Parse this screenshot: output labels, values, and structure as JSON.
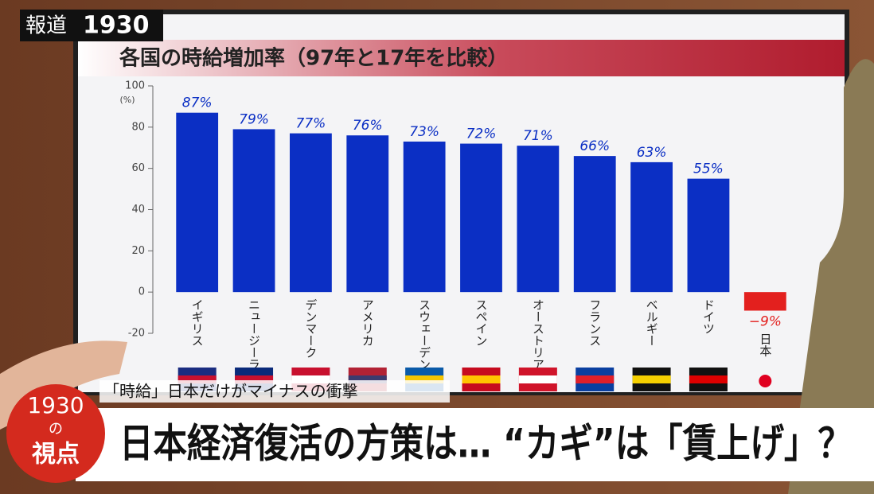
{
  "chart_data": {
    "type": "bar",
    "title": "各国の時給増加率（97年と17年を比較）",
    "y_unit_label": "(%)",
    "categories": [
      "イギリス",
      "ニュージーランド",
      "デンマーク",
      "アメリカ",
      "スウェーデン",
      "スペイン",
      "オーストリア",
      "フランス",
      "ベルギー",
      "ドイツ",
      "日本"
    ],
    "values": [
      87,
      79,
      77,
      76,
      73,
      72,
      71,
      66,
      63,
      55,
      -9
    ],
    "value_labels": [
      "87%",
      "79%",
      "77%",
      "76%",
      "73%",
      "72%",
      "71%",
      "66%",
      "63%",
      "55%",
      "−9%"
    ],
    "colors": [
      "#0b2fc4",
      "#0b2fc4",
      "#0b2fc4",
      "#0b2fc4",
      "#0b2fc4",
      "#0b2fc4",
      "#0b2fc4",
      "#0b2fc4",
      "#0b2fc4",
      "#0b2fc4",
      "#e3201e"
    ],
    "ylim": [
      -20,
      100
    ],
    "yticks": [
      -20,
      0,
      20,
      40,
      60,
      80,
      100
    ]
  },
  "logo": {
    "name": "報道",
    "time": "1930"
  },
  "caption": "「時給」日本だけがマイナスの衝撃",
  "badge": {
    "time": "1930",
    "particle": "の",
    "word": "視点"
  },
  "headline": "日本経済復活の方策は… “カギ”は「賃上げ」？"
}
